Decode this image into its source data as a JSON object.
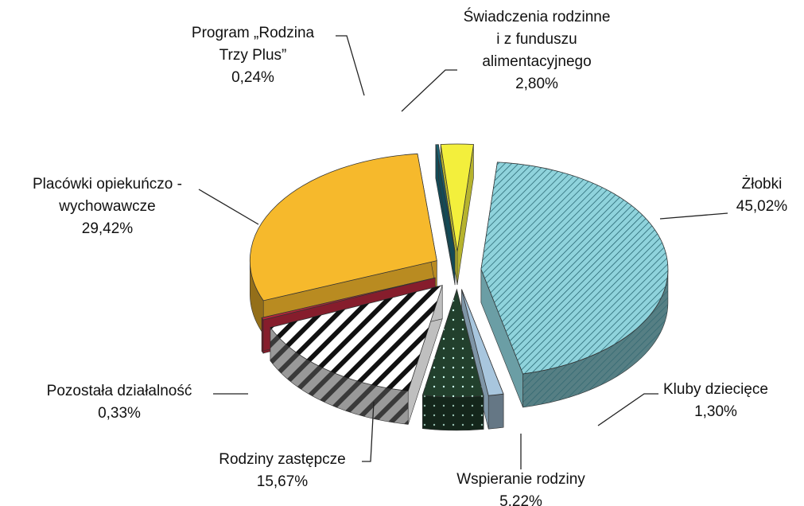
{
  "chart_data": {
    "type": "pie3d",
    "categories": [
      [
        "Żłobki"
      ],
      [
        "Kluby dziecięce"
      ],
      [
        "Wspieranie rodziny"
      ],
      [
        "Rodziny zastępcze"
      ],
      [
        "Pozostała działalność"
      ],
      [
        "Placówki opiekuńczo -",
        "wychowawcze"
      ],
      [
        "Program „Rodzina",
        "Trzy Plus”"
      ],
      [
        "Świadczenia rodzinne",
        "i z funduszu",
        "alimentacyjnego"
      ]
    ],
    "values": [
      45.02,
      1.3,
      5.22,
      15.67,
      0.33,
      29.42,
      0.24,
      2.8
    ],
    "value_labels": [
      "45,02%",
      "1,30%",
      "5,22%",
      "15,67%",
      "0,33%",
      "29,42%",
      "0,24%",
      "2,80%"
    ],
    "colors": [
      "#8fd3dc",
      "#a8c6de",
      "#22402d",
      "#ffffff",
      "#b3263a",
      "#f6b92c",
      "#1b6272",
      "#f3ef3c"
    ],
    "patterns": [
      "hatch",
      null,
      "dots",
      "stripes",
      null,
      null,
      null,
      null
    ]
  }
}
